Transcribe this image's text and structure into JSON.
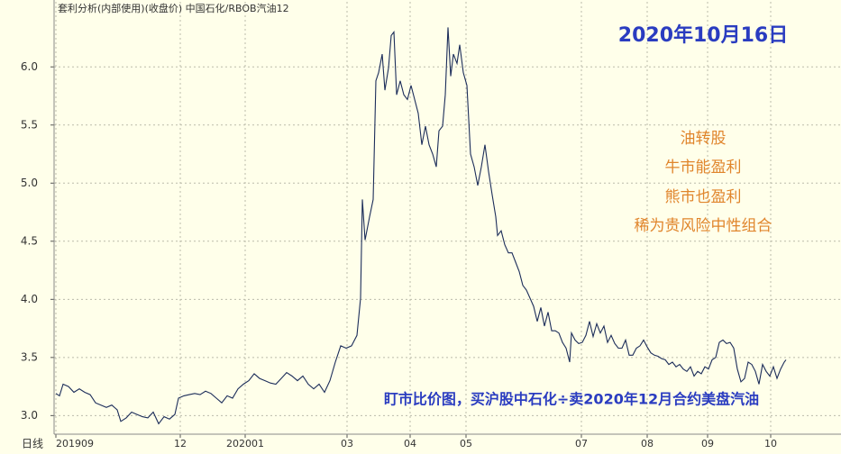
{
  "chart_data": {
    "type": "line",
    "title": "套利分析(内部使用)(收盘价) 中国石化/RBOB汽油12",
    "period_label": "日线",
    "annotations": [
      "2020年10月16日",
      "油转股",
      "牛市能盈利",
      "熊市也盈利",
      "稀为贵风险中性组合",
      "盯市比价图，买沪股中石化÷卖2020年12月合约美盘汽油"
    ],
    "x": [
      0,
      4,
      8,
      14,
      20,
      26,
      32,
      38,
      44,
      50,
      56,
      62,
      68,
      72,
      78,
      84,
      90,
      96,
      102,
      108,
      114,
      120,
      126,
      132,
      136,
      142,
      148,
      154,
      160,
      166,
      172,
      178,
      184,
      190,
      196,
      202,
      208,
      214,
      220,
      226,
      232,
      238,
      244,
      250,
      256,
      262,
      268,
      274,
      280,
      286,
      292,
      298,
      304,
      310,
      316,
      322,
      328,
      334,
      338,
      340,
      343,
      348,
      352,
      355,
      358,
      362,
      365,
      369,
      372,
      375,
      378,
      382,
      386,
      390,
      394,
      398,
      402,
      406,
      410,
      414,
      418,
      422,
      425,
      429,
      432,
      435,
      438,
      441,
      445,
      448,
      452,
      456,
      460,
      464,
      468,
      472,
      476,
      480,
      484,
      488,
      490,
      494,
      498,
      502,
      506,
      510,
      514,
      518,
      522,
      526,
      530,
      534,
      538,
      542,
      546,
      550,
      554,
      558,
      562,
      566,
      570,
      572,
      576,
      580,
      584,
      588,
      592,
      596,
      600,
      604,
      608,
      612,
      616,
      620,
      624,
      628,
      632,
      636,
      640,
      644,
      648,
      652,
      656,
      660,
      664,
      668,
      672,
      676,
      680,
      684,
      688,
      692,
      696,
      700,
      704,
      708,
      712,
      716,
      720,
      724,
      728,
      732,
      736,
      740,
      744,
      748,
      752,
      756,
      760,
      764,
      768,
      772,
      776,
      780,
      784,
      788,
      792,
      796,
      800,
      804,
      808,
      810
    ],
    "series": [
      {
        "name": "中国石化/RBOB汽油12",
        "color": "#1c2d5a",
        "values": [
          3.19,
          3.17,
          3.27,
          3.25,
          3.2,
          3.23,
          3.2,
          3.18,
          3.11,
          3.09,
          3.07,
          3.09,
          3.05,
          2.95,
          2.98,
          3.03,
          3.01,
          2.99,
          2.98,
          3.03,
          2.93,
          2.99,
          2.97,
          3.01,
          3.15,
          3.17,
          3.18,
          3.19,
          3.18,
          3.21,
          3.19,
          3.15,
          3.11,
          3.17,
          3.15,
          3.23,
          3.27,
          3.3,
          3.36,
          3.32,
          3.3,
          3.28,
          3.27,
          3.32,
          3.37,
          3.34,
          3.3,
          3.34,
          3.27,
          3.23,
          3.27,
          3.2,
          3.3,
          3.46,
          3.6,
          3.58,
          3.6,
          3.69,
          4.01,
          4.86,
          4.51,
          4.71,
          4.86,
          5.88,
          5.95,
          6.11,
          5.8,
          5.99,
          6.27,
          6.3,
          5.76,
          5.88,
          5.76,
          5.72,
          5.84,
          5.72,
          5.6,
          5.33,
          5.49,
          5.33,
          5.25,
          5.14,
          5.45,
          5.49,
          5.76,
          6.34,
          5.92,
          6.11,
          6.03,
          6.19,
          5.95,
          5.84,
          5.25,
          5.14,
          4.98,
          5.14,
          5.33,
          5.1,
          4.9,
          4.71,
          4.55,
          4.59,
          4.47,
          4.4,
          4.4,
          4.32,
          4.24,
          4.12,
          4.08,
          4.01,
          3.94,
          3.81,
          3.93,
          3.77,
          3.89,
          3.73,
          3.73,
          3.71,
          3.63,
          3.58,
          3.46,
          3.71,
          3.65,
          3.62,
          3.63,
          3.69,
          3.81,
          3.68,
          3.79,
          3.71,
          3.77,
          3.63,
          3.69,
          3.62,
          3.58,
          3.58,
          3.65,
          3.52,
          3.52,
          3.58,
          3.6,
          3.65,
          3.59,
          3.54,
          3.52,
          3.51,
          3.49,
          3.48,
          3.44,
          3.46,
          3.42,
          3.44,
          3.4,
          3.38,
          3.42,
          3.34,
          3.38,
          3.36,
          3.42,
          3.4,
          3.48,
          3.5,
          3.63,
          3.65,
          3.62,
          3.63,
          3.58,
          3.4,
          3.29,
          3.32,
          3.46,
          3.44,
          3.38,
          3.27,
          3.44,
          3.38,
          3.34,
          3.42,
          3.32,
          3.4,
          3.46,
          3.48
        ]
      }
    ],
    "xlim": [
      -2,
      871
    ],
    "xticks": [
      {
        "value": 0,
        "label": "201909"
      },
      {
        "value": 138,
        "label": "12"
      },
      {
        "value": 210,
        "label": "202001"
      },
      {
        "value": 323,
        "label": "03"
      },
      {
        "value": 393,
        "label": "04"
      },
      {
        "value": 455,
        "label": "05"
      },
      {
        "value": 583,
        "label": "07"
      },
      {
        "value": 656,
        "label": "08"
      },
      {
        "value": 723,
        "label": "09"
      },
      {
        "value": 793,
        "label": "10"
      }
    ],
    "ylim": [
      2.84,
      6.56
    ],
    "yticks": [
      {
        "value": 3,
        "label": "3.0"
      },
      3.5,
      {
        "value": 4,
        "label": "4.0"
      },
      4.5,
      {
        "value": 5,
        "label": "5.0"
      },
      5.5,
      {
        "value": 6,
        "label": "6.0"
      }
    ],
    "grid": true
  }
}
